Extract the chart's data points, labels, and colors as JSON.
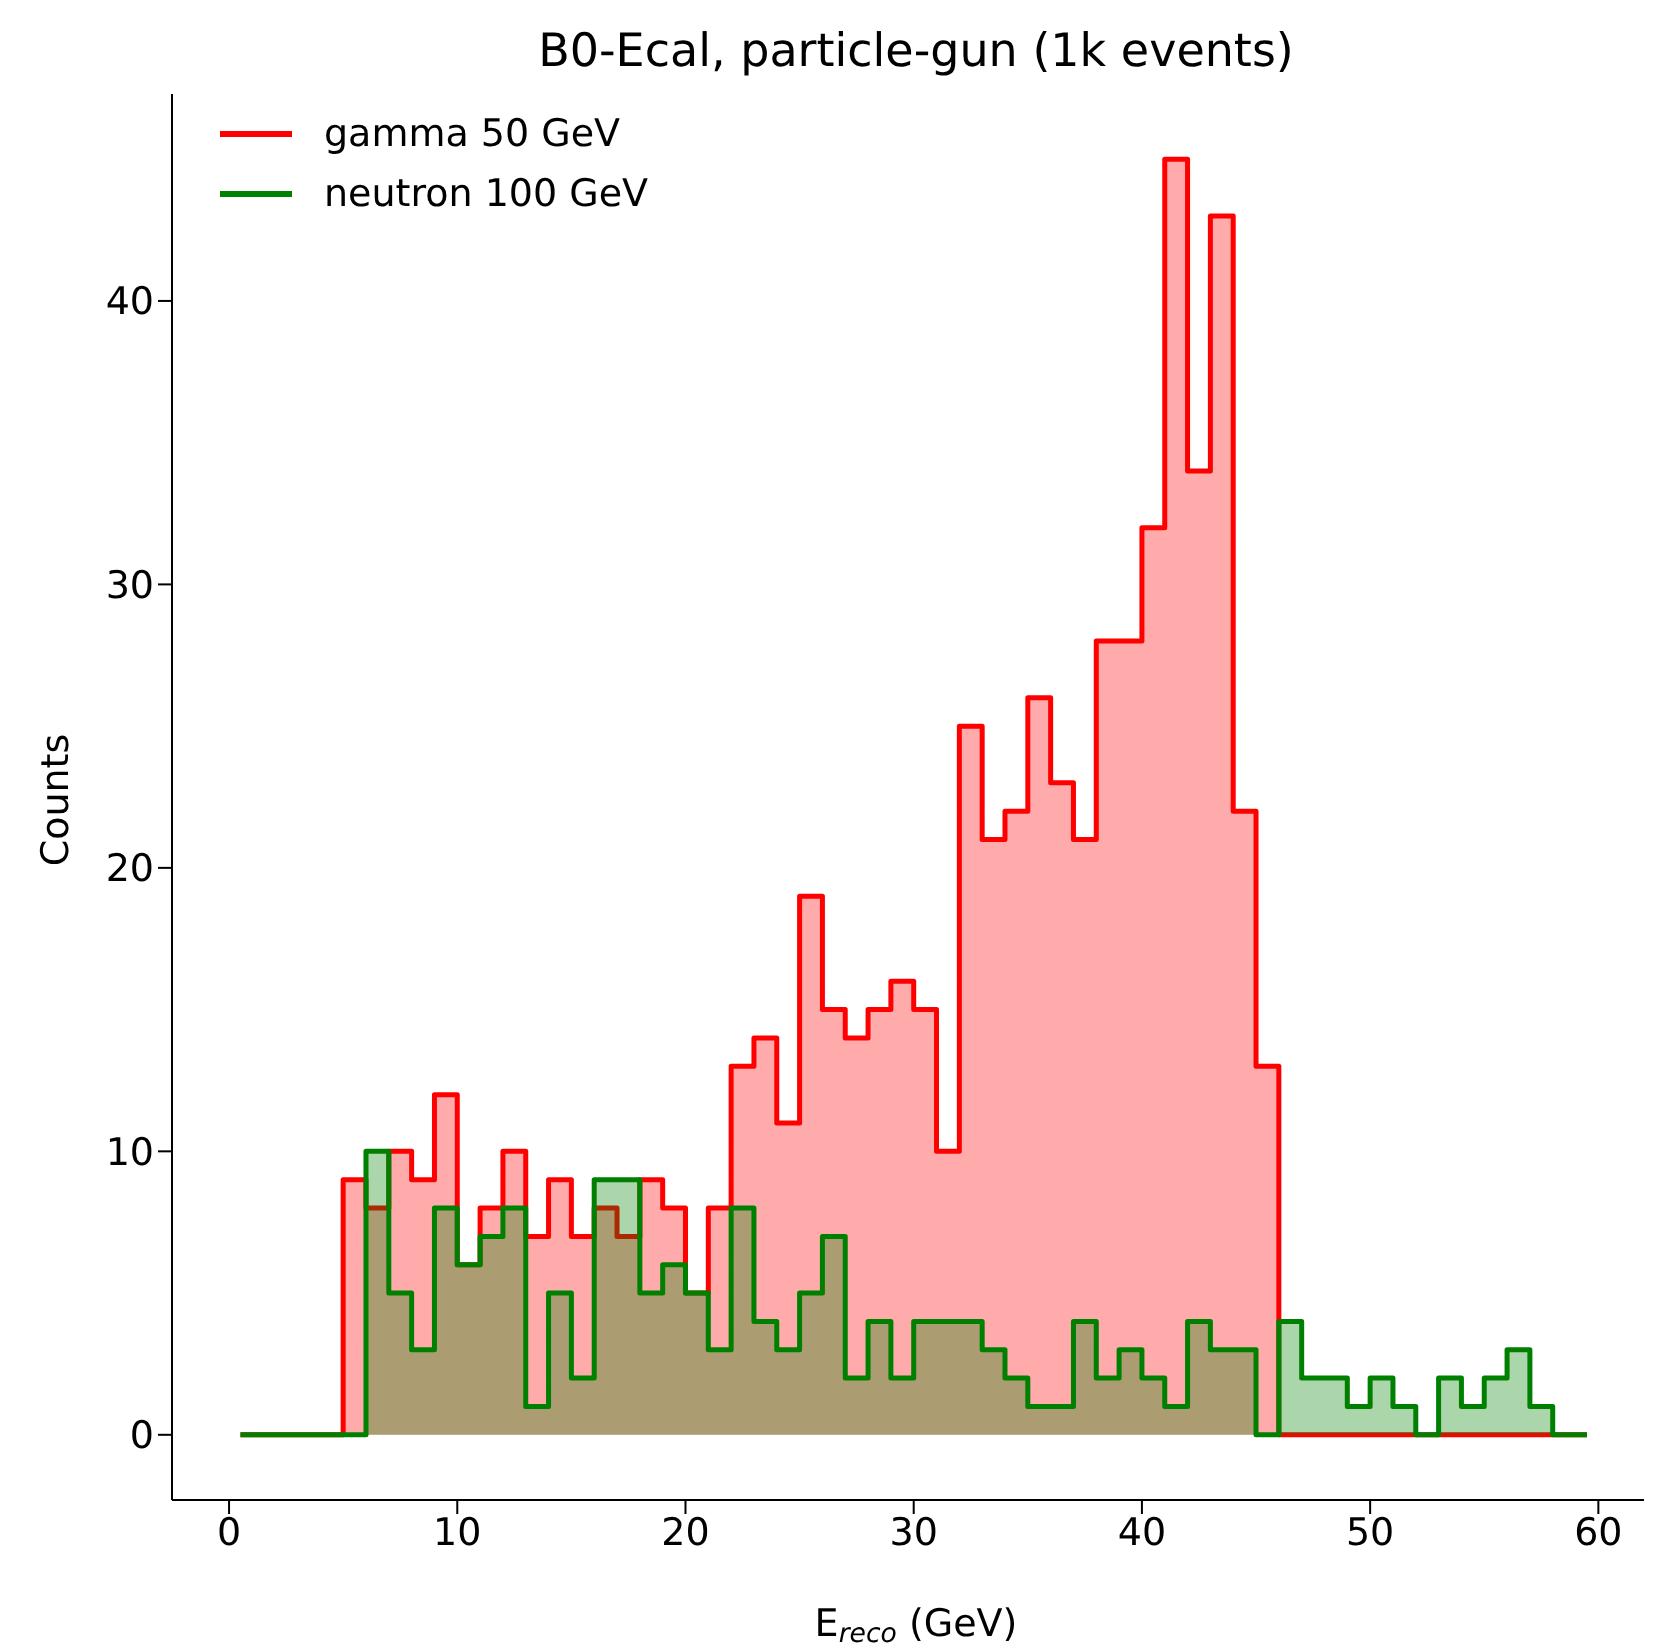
{
  "chart_data": {
    "type": "histogram",
    "title": "B0-Ecal, particle-gun (1k events)",
    "xlabel": "E$_{reco}$ (GeV)",
    "ylabel": "Counts",
    "bins": [
      0.5,
      1,
      2,
      3,
      4,
      5,
      6,
      7,
      8,
      9,
      10,
      11,
      12,
      13,
      14,
      15,
      16,
      17,
      18,
      19,
      20,
      21,
      22,
      23,
      24,
      25,
      26,
      27,
      28,
      29,
      30,
      31,
      32,
      33,
      34,
      35,
      36,
      37,
      38,
      39,
      40,
      41,
      42,
      43,
      44,
      45,
      46,
      47,
      48,
      49,
      50,
      51,
      52,
      53,
      54,
      55,
      56,
      57,
      58,
      59,
      59.5
    ],
    "series": [
      {
        "name": "gamma 50 GeV",
        "color": "#ff0000",
        "values": [
          0,
          0,
          0,
          0,
          0,
          9,
          8,
          10,
          9,
          12,
          6,
          8,
          10,
          7,
          9,
          7,
          8,
          7,
          9,
          8,
          5,
          8,
          13,
          14,
          11,
          19,
          15,
          14,
          15,
          16,
          15,
          10,
          25,
          21,
          22,
          26,
          23,
          21,
          28,
          28,
          32,
          45,
          34,
          43,
          22,
          13,
          0,
          0,
          0,
          0,
          0,
          0,
          0,
          0,
          0,
          0,
          0,
          0,
          0,
          0
        ]
      },
      {
        "name": "neutron 100 GeV",
        "color": "#008000",
        "values": [
          0,
          0,
          0,
          0,
          0,
          0,
          10,
          5,
          3,
          8,
          6,
          7,
          8,
          1,
          5,
          2,
          9,
          9,
          5,
          6,
          5,
          3,
          8,
          4,
          3,
          5,
          7,
          2,
          4,
          2,
          4,
          4,
          4,
          3,
          2,
          1,
          1,
          4,
          2,
          3,
          2,
          1,
          4,
          3,
          3,
          0,
          4,
          2,
          2,
          1,
          2,
          1,
          0,
          2,
          1,
          2,
          3,
          1,
          0,
          0
        ]
      }
    ],
    "xlim": [
      -2.5,
      62
    ],
    "ylim": [
      -2.3,
      47.3
    ],
    "xticks": [
      0,
      10,
      20,
      30,
      40,
      50,
      60
    ],
    "yticks": [
      0,
      10,
      20,
      30,
      40
    ],
    "grid": false,
    "legend": "top left"
  }
}
